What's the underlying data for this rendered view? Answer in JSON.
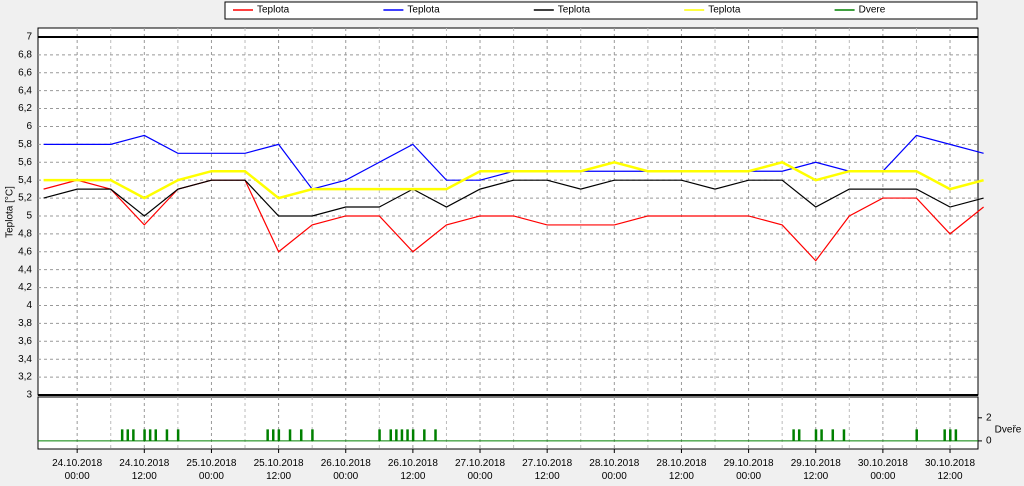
{
  "chart_data": [
    {
      "type": "line",
      "ylabel": "Teplota [°C]",
      "x": [
        "23.10.2018 18:00",
        "24.10.2018 00:00",
        "24.10.2018 06:00",
        "24.10.2018 12:00",
        "24.10.2018 18:00",
        "25.10.2018 00:00",
        "25.10.2018 06:00",
        "25.10.2018 12:00",
        "25.10.2018 18:00",
        "26.10.2018 00:00",
        "26.10.2018 06:00",
        "26.10.2018 12:00",
        "26.10.2018 18:00",
        "27.10.2018 00:00",
        "27.10.2018 06:00",
        "27.10.2018 12:00",
        "27.10.2018 18:00",
        "28.10.2018 00:00",
        "28.10.2018 06:00",
        "28.10.2018 12:00",
        "28.10.2018 18:00",
        "29.10.2018 00:00",
        "29.10.2018 06:00",
        "29.10.2018 12:00",
        "29.10.2018 18:00",
        "30.10.2018 00:00",
        "30.10.2018 06:00",
        "30.10.2018 12:00",
        "30.10.2018 18:00"
      ],
      "series": [
        {
          "name": "Teplota",
          "color": "#ff0000",
          "values": [
            5.3,
            5.4,
            5.3,
            4.9,
            5.3,
            5.4,
            5.4,
            4.6,
            4.9,
            5.0,
            5.0,
            4.6,
            4.9,
            5.0,
            5.0,
            4.9,
            4.9,
            4.9,
            5.0,
            5.0,
            5.0,
            5.0,
            4.9,
            4.5,
            5.0,
            5.2,
            5.2,
            4.8,
            5.1
          ]
        },
        {
          "name": "Teplota",
          "color": "#0000ff",
          "values": [
            5.8,
            5.8,
            5.8,
            5.9,
            5.7,
            5.7,
            5.7,
            5.8,
            5.3,
            5.4,
            5.6,
            5.8,
            5.4,
            5.4,
            5.5,
            5.5,
            5.5,
            5.5,
            5.5,
            5.5,
            5.5,
            5.5,
            5.5,
            5.6,
            5.5,
            5.5,
            5.9,
            5.8,
            5.7
          ]
        },
        {
          "name": "Teplota",
          "color": "#000000",
          "values": [
            5.2,
            5.3,
            5.3,
            5.0,
            5.3,
            5.4,
            5.4,
            5.0,
            5.0,
            5.1,
            5.1,
            5.3,
            5.1,
            5.3,
            5.4,
            5.4,
            5.3,
            5.4,
            5.4,
            5.4,
            5.3,
            5.4,
            5.4,
            5.1,
            5.3,
            5.3,
            5.3,
            5.1,
            5.2
          ]
        },
        {
          "name": "Teplota",
          "color": "#ffff00",
          "values": [
            5.4,
            5.4,
            5.4,
            5.2,
            5.4,
            5.5,
            5.5,
            5.2,
            5.3,
            5.3,
            5.3,
            5.3,
            5.3,
            5.5,
            5.5,
            5.5,
            5.5,
            5.6,
            5.5,
            5.5,
            5.5,
            5.5,
            5.6,
            5.4,
            5.5,
            5.5,
            5.5,
            5.3,
            5.4
          ]
        }
      ],
      "xlim": [
        "23.10.2018 17:00",
        "30.10.2018 17:00"
      ],
      "xticks": [
        "24.10.2018 00:00",
        "24.10.2018 12:00",
        "25.10.2018 00:00",
        "25.10.2018 12:00",
        "26.10.2018 00:00",
        "26.10.2018 12:00",
        "27.10.2018 00:00",
        "27.10.2018 12:00",
        "28.10.2018 00:00",
        "28.10.2018 12:00",
        "29.10.2018 00:00",
        "29.10.2018 12:00",
        "30.10.2018 00:00",
        "30.10.2018 12:00"
      ],
      "ylim": [
        3,
        7.1
      ],
      "yticks": [
        3,
        {
          "value": 3.2,
          "label": "3,2"
        },
        {
          "value": 3.4,
          "label": "3,4"
        },
        {
          "value": 3.6,
          "label": "3,6"
        },
        {
          "value": 3.8,
          "label": "3,8"
        },
        4,
        {
          "value": 4.2,
          "label": "4,2"
        },
        {
          "value": 4.4,
          "label": "4,4"
        },
        {
          "value": 4.6,
          "label": "4,6"
        },
        {
          "value": 4.8,
          "label": "4,8"
        },
        5,
        {
          "value": 5.2,
          "label": "5,2"
        },
        {
          "value": 5.4,
          "label": "5,4"
        },
        {
          "value": 5.6,
          "label": "5,6"
        },
        {
          "value": 5.8,
          "label": "5,8"
        },
        6,
        {
          "value": 6.2,
          "label": "6,2"
        },
        {
          "value": 6.4,
          "label": "6,4"
        },
        {
          "value": 6.6,
          "label": "6,6"
        },
        {
          "value": 6.8,
          "label": "6,8"
        },
        7
      ],
      "grid": true
    },
    {
      "type": "bar",
      "ylabel": "Dveře",
      "x": [
        "24.10.2018 08:00",
        "24.10.2018 09:00",
        "24.10.2018 10:00",
        "24.10.2018 12:00",
        "24.10.2018 13:00",
        "24.10.2018 14:00",
        "24.10.2018 16:00",
        "24.10.2018 18:00",
        "25.10.2018 10:00",
        "25.10.2018 11:00",
        "25.10.2018 12:00",
        "25.10.2018 14:00",
        "25.10.2018 16:00",
        "25.10.2018 18:00",
        "26.10.2018 06:00",
        "26.10.2018 08:00",
        "26.10.2018 09:00",
        "26.10.2018 10:00",
        "26.10.2018 11:00",
        "26.10.2018 12:00",
        "26.10.2018 14:00",
        "26.10.2018 16:00",
        "29.10.2018 08:00",
        "29.10.2018 09:00",
        "29.10.2018 12:00",
        "29.10.2018 13:00",
        "29.10.2018 15:00",
        "29.10.2018 17:00",
        "30.10.2018 06:00",
        "30.10.2018 11:00",
        "30.10.2018 12:00",
        "30.10.2018 13:00"
      ],
      "series": [
        {
          "name": "Dvere",
          "color": "#008000",
          "values": [
            1,
            1,
            1,
            1,
            1,
            1,
            1,
            1,
            1,
            1,
            1,
            1,
            1,
            1,
            1,
            1,
            1,
            1,
            1,
            1,
            1,
            1,
            1,
            1,
            1,
            1,
            1,
            1,
            1,
            1,
            1,
            1
          ]
        }
      ],
      "ylim": [
        -0.7,
        3.8
      ],
      "yticks": [
        0,
        2
      ]
    }
  ]
}
